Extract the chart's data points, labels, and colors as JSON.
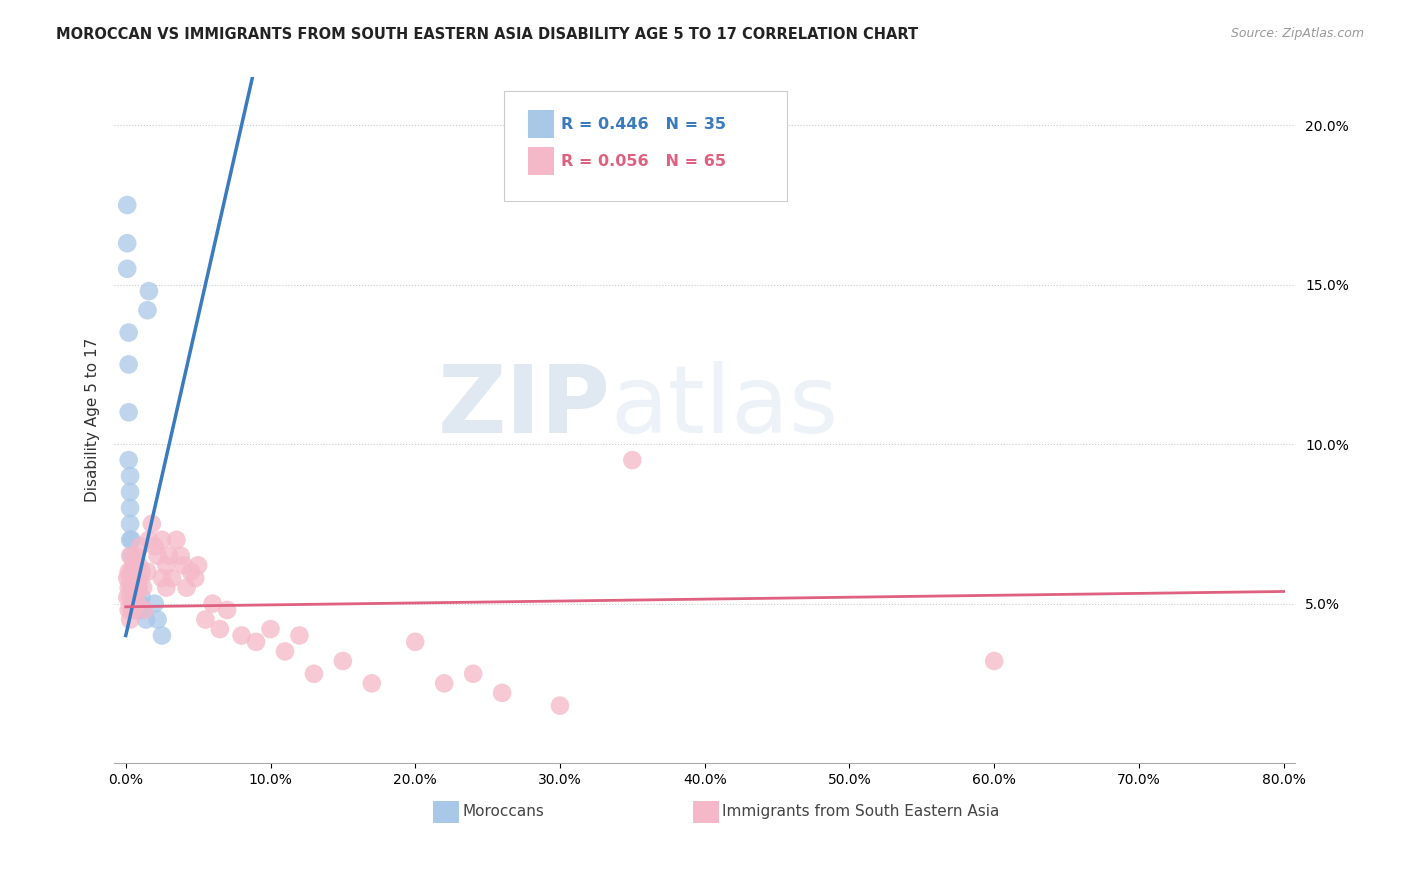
{
  "title": "MOROCCAN VS IMMIGRANTS FROM SOUTH EASTERN ASIA DISABILITY AGE 5 TO 17 CORRELATION CHART",
  "source": "Source: ZipAtlas.com",
  "ylabel": "Disability Age 5 to 17",
  "blue_R": 0.446,
  "blue_N": 35,
  "pink_R": 0.056,
  "pink_N": 65,
  "blue_color": "#a8c8e8",
  "blue_line_color": "#3a7abf",
  "pink_color": "#f5b8c8",
  "pink_line_color": "#e06080",
  "legend_blue_label": "Moroccans",
  "legend_pink_label": "Immigrants from South Eastern Asia",
  "background_color": "#ffffff",
  "blue_scatter_x": [
    0.001,
    0.001,
    0.001,
    0.002,
    0.002,
    0.002,
    0.002,
    0.003,
    0.003,
    0.003,
    0.003,
    0.003,
    0.004,
    0.004,
    0.004,
    0.004,
    0.005,
    0.005,
    0.005,
    0.006,
    0.006,
    0.007,
    0.007,
    0.008,
    0.008,
    0.009,
    0.01,
    0.011,
    0.012,
    0.014,
    0.015,
    0.016,
    0.02,
    0.022,
    0.025
  ],
  "blue_scatter_y": [
    0.175,
    0.163,
    0.155,
    0.135,
    0.125,
    0.11,
    0.095,
    0.09,
    0.085,
    0.08,
    0.075,
    0.07,
    0.07,
    0.065,
    0.06,
    0.055,
    0.06,
    0.055,
    0.052,
    0.055,
    0.05,
    0.055,
    0.05,
    0.055,
    0.048,
    0.048,
    0.05,
    0.052,
    0.048,
    0.045,
    0.142,
    0.148,
    0.05,
    0.045,
    0.04
  ],
  "pink_scatter_x": [
    0.001,
    0.001,
    0.002,
    0.002,
    0.002,
    0.003,
    0.003,
    0.003,
    0.003,
    0.004,
    0.004,
    0.004,
    0.005,
    0.005,
    0.005,
    0.006,
    0.006,
    0.007,
    0.007,
    0.008,
    0.008,
    0.009,
    0.009,
    0.01,
    0.01,
    0.011,
    0.012,
    0.013,
    0.015,
    0.016,
    0.018,
    0.02,
    0.022,
    0.025,
    0.025,
    0.028,
    0.028,
    0.03,
    0.032,
    0.035,
    0.038,
    0.04,
    0.042,
    0.045,
    0.048,
    0.05,
    0.055,
    0.06,
    0.065,
    0.07,
    0.08,
    0.09,
    0.1,
    0.11,
    0.12,
    0.13,
    0.15,
    0.17,
    0.2,
    0.22,
    0.24,
    0.26,
    0.3,
    0.35,
    0.6
  ],
  "pink_scatter_y": [
    0.058,
    0.052,
    0.06,
    0.055,
    0.048,
    0.065,
    0.058,
    0.052,
    0.045,
    0.06,
    0.055,
    0.048,
    0.062,
    0.055,
    0.048,
    0.06,
    0.052,
    0.065,
    0.055,
    0.058,
    0.05,
    0.062,
    0.055,
    0.068,
    0.058,
    0.06,
    0.055,
    0.048,
    0.06,
    0.07,
    0.075,
    0.068,
    0.065,
    0.07,
    0.058,
    0.062,
    0.055,
    0.065,
    0.058,
    0.07,
    0.065,
    0.062,
    0.055,
    0.06,
    0.058,
    0.062,
    0.045,
    0.05,
    0.042,
    0.048,
    0.04,
    0.038,
    0.042,
    0.035,
    0.04,
    0.028,
    0.032,
    0.025,
    0.038,
    0.025,
    0.028,
    0.022,
    0.018,
    0.095,
    0.032
  ]
}
